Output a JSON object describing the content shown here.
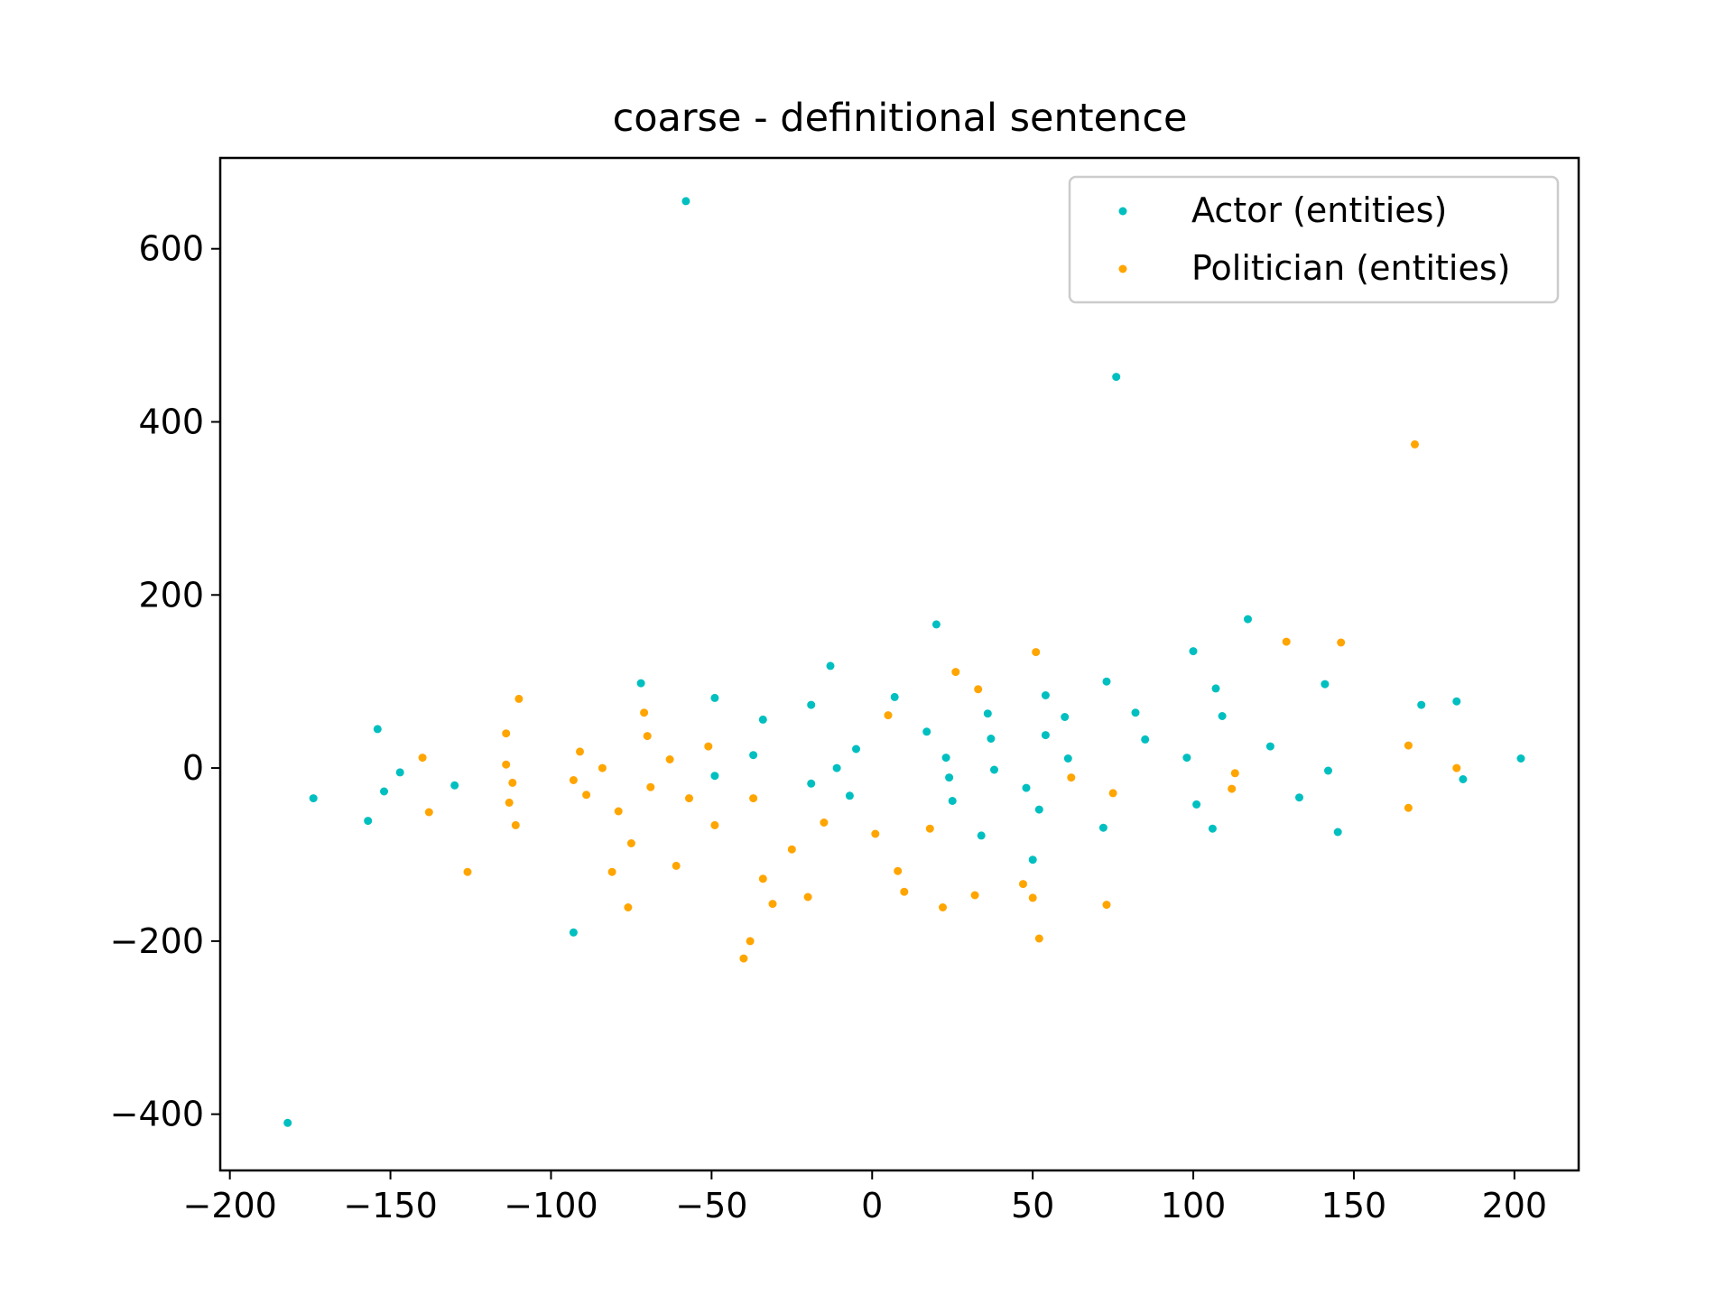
{
  "chart_data": {
    "type": "scatter",
    "title": "coarse - definitional sentence",
    "xlabel": "",
    "ylabel": "",
    "xlim": [
      -203,
      220
    ],
    "ylim": [
      -465,
      705
    ],
    "xticks": [
      -200,
      -150,
      -100,
      -50,
      0,
      50,
      100,
      150,
      200
    ],
    "yticks": [
      -400,
      -200,
      0,
      200,
      400,
      600
    ],
    "grid": false,
    "legend_position": "top-right",
    "series": [
      {
        "name": "Actor (entities)",
        "color": "#00bfc0",
        "points": [
          [
            -58,
            655
          ],
          [
            76,
            452
          ],
          [
            -182,
            -410
          ],
          [
            -93,
            -190
          ],
          [
            -174,
            -35
          ],
          [
            -157,
            -61
          ],
          [
            -152,
            -27
          ],
          [
            -154,
            45
          ],
          [
            -147,
            -5
          ],
          [
            -130,
            -20
          ],
          [
            -72,
            98
          ],
          [
            -49,
            81
          ],
          [
            -49,
            -9
          ],
          [
            -37,
            15
          ],
          [
            -34,
            56
          ],
          [
            -19,
            73
          ],
          [
            -19,
            -18
          ],
          [
            -13,
            118
          ],
          [
            -11,
            0
          ],
          [
            -7,
            -32
          ],
          [
            -5,
            22
          ],
          [
            7,
            82
          ],
          [
            17,
            42
          ],
          [
            20,
            166
          ],
          [
            23,
            12
          ],
          [
            24,
            -11
          ],
          [
            25,
            -38
          ],
          [
            34,
            -78
          ],
          [
            36,
            63
          ],
          [
            37,
            34
          ],
          [
            38,
            -2
          ],
          [
            48,
            -23
          ],
          [
            50,
            -106
          ],
          [
            52,
            -48
          ],
          [
            54,
            84
          ],
          [
            54,
            38
          ],
          [
            60,
            59
          ],
          [
            61,
            11
          ],
          [
            72,
            -69
          ],
          [
            73,
            100
          ],
          [
            82,
            64
          ],
          [
            85,
            33
          ],
          [
            98,
            12
          ],
          [
            100,
            135
          ],
          [
            101,
            -42
          ],
          [
            106,
            -70
          ],
          [
            107,
            92
          ],
          [
            109,
            60
          ],
          [
            117,
            172
          ],
          [
            124,
            25
          ],
          [
            133,
            -34
          ],
          [
            141,
            97
          ],
          [
            142,
            -3
          ],
          [
            145,
            -74
          ],
          [
            171,
            73
          ],
          [
            182,
            77
          ],
          [
            184,
            -13
          ],
          [
            202,
            11
          ]
        ]
      },
      {
        "name": "Politician (entities)",
        "color": "#ffa500",
        "points": [
          [
            169,
            374
          ],
          [
            -140,
            12
          ],
          [
            -138,
            -51
          ],
          [
            -126,
            -120
          ],
          [
            -114,
            40
          ],
          [
            -114,
            4
          ],
          [
            -113,
            -40
          ],
          [
            -112,
            -17
          ],
          [
            -111,
            -66
          ],
          [
            -110,
            80
          ],
          [
            -93,
            -14
          ],
          [
            -91,
            19
          ],
          [
            -89,
            -31
          ],
          [
            -84,
            0
          ],
          [
            -81,
            -120
          ],
          [
            -79,
            -50
          ],
          [
            -76,
            -161
          ],
          [
            -75,
            -87
          ],
          [
            -71,
            64
          ],
          [
            -70,
            37
          ],
          [
            -69,
            -22
          ],
          [
            -63,
            10
          ],
          [
            -61,
            -113
          ],
          [
            -57,
            -35
          ],
          [
            -51,
            25
          ],
          [
            -49,
            -66
          ],
          [
            -40,
            -220
          ],
          [
            -38,
            -200
          ],
          [
            -37,
            -35
          ],
          [
            -34,
            -128
          ],
          [
            -31,
            -157
          ],
          [
            -25,
            -94
          ],
          [
            -20,
            -149
          ],
          [
            -15,
            -63
          ],
          [
            1,
            -76
          ],
          [
            5,
            61
          ],
          [
            8,
            -119
          ],
          [
            10,
            -143
          ],
          [
            18,
            -70
          ],
          [
            22,
            -161
          ],
          [
            26,
            111
          ],
          [
            32,
            -147
          ],
          [
            33,
            91
          ],
          [
            47,
            -134
          ],
          [
            50,
            -150
          ],
          [
            51,
            134
          ],
          [
            52,
            -197
          ],
          [
            62,
            -11
          ],
          [
            73,
            -158
          ],
          [
            75,
            -29
          ],
          [
            112,
            -24
          ],
          [
            113,
            -6
          ],
          [
            129,
            146
          ],
          [
            146,
            145
          ],
          [
            167,
            26
          ],
          [
            167,
            -46
          ],
          [
            182,
            0
          ]
        ]
      }
    ]
  }
}
